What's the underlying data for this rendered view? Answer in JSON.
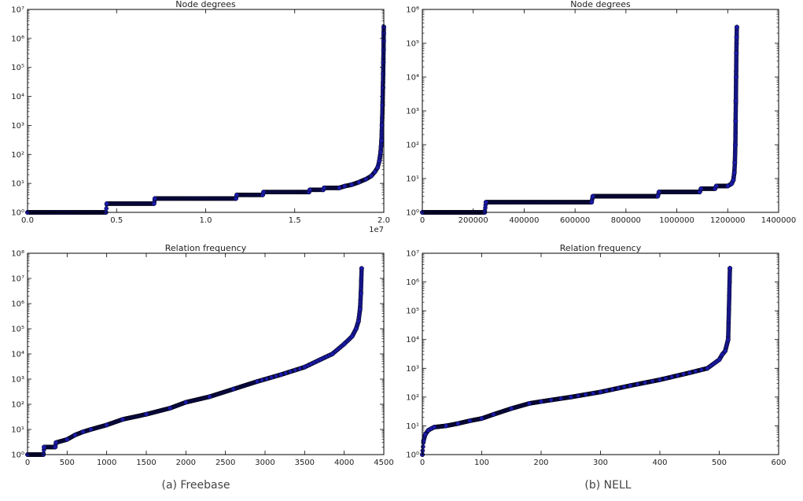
{
  "captions": {
    "left": "(a) Freebase",
    "right": "(b) NELL"
  },
  "colors": {
    "marker": "#1a1aa8",
    "marker_edge": "#000000",
    "line": "#0000ff",
    "axis": "#000000",
    "text": "#222222"
  },
  "chart_data": [
    {
      "id": "freebase-node-degrees",
      "type": "scatter",
      "title": "Node  degrees",
      "xlabel": "",
      "ylabel": "",
      "xlim": [
        0,
        20000000
      ],
      "x_ticks": [
        0,
        5000000,
        10000000,
        15000000,
        20000000
      ],
      "x_tick_labels": [
        "0.0",
        "0.5",
        "1.0",
        "1.5",
        "2.0"
      ],
      "x_offset_label": "1e7",
      "y_scale": "log",
      "ylim": [
        1,
        10000000
      ],
      "y_tick_labels": [
        "10⁰",
        "10¹",
        "10²",
        "10³",
        "10⁴",
        "10⁵",
        "10⁶",
        "10⁷"
      ],
      "grid": false,
      "x": [
        0,
        4400000,
        4450000,
        7100000,
        7150000,
        11700000,
        11750000,
        13200000,
        13250000,
        15800000,
        15850000,
        16600000,
        16650000,
        17500000,
        17800000,
        18200000,
        18600000,
        19000000,
        19300000,
        19500000,
        19650000,
        19750000,
        19820000,
        19870000,
        19900000,
        19930000,
        19950000,
        19965000,
        19975000,
        19985000,
        19990000,
        19995000,
        20000000
      ],
      "y": [
        1,
        1,
        2,
        2,
        3,
        3,
        4,
        4,
        5,
        5,
        6,
        6,
        7,
        7,
        8,
        9,
        11,
        14,
        18,
        25,
        35,
        60,
        120,
        300,
        1000,
        5000,
        20000,
        60000,
        150000,
        400000,
        800000,
        1500000,
        2500000
      ]
    },
    {
      "id": "nell-node-degrees",
      "type": "scatter",
      "title": "Node   degrees",
      "xlabel": "",
      "ylabel": "",
      "xlim": [
        0,
        1400000
      ],
      "x_ticks": [
        0,
        200000,
        400000,
        600000,
        800000,
        1000000,
        1200000,
        1400000
      ],
      "x_tick_labels": [
        "0",
        "200000",
        "400000",
        "600000",
        "800000",
        "1000000",
        "1200000",
        "1400000"
      ],
      "y_scale": "log",
      "ylim": [
        1,
        1000000
      ],
      "y_tick_labels": [
        "10⁰",
        "10¹",
        "10²",
        "10³",
        "10⁴",
        "10⁵",
        "10⁶"
      ],
      "grid": false,
      "x": [
        0,
        245000,
        250000,
        665000,
        670000,
        925000,
        930000,
        1090000,
        1095000,
        1150000,
        1155000,
        1200000,
        1215000,
        1222000,
        1226000,
        1228000,
        1230000,
        1231000,
        1232000,
        1233000,
        1234000,
        1235000,
        1236000
      ],
      "y": [
        1,
        1,
        2,
        2,
        3,
        3,
        4,
        4,
        5,
        5,
        6,
        6,
        7,
        9,
        15,
        30,
        100,
        500,
        2000,
        10000,
        50000,
        150000,
        300000
      ]
    },
    {
      "id": "freebase-relation-frequency",
      "type": "scatter",
      "title": "Relation frequency",
      "xlabel": "",
      "ylabel": "",
      "xlim": [
        0,
        4500
      ],
      "x_ticks": [
        0,
        500,
        1000,
        1500,
        2000,
        2500,
        3000,
        3500,
        4000,
        4500
      ],
      "x_tick_labels": [
        "0",
        "500",
        "1000",
        "1500",
        "2000",
        "2500",
        "3000",
        "3500",
        "4000",
        "4500"
      ],
      "y_scale": "log",
      "ylim": [
        1,
        100000000
      ],
      "y_tick_labels": [
        "10⁰",
        "10¹",
        "10²",
        "10³",
        "10⁴",
        "10⁵",
        "10⁶",
        "10⁷",
        "10⁸"
      ],
      "grid": false,
      "x": [
        0,
        200,
        210,
        350,
        360,
        500,
        600,
        700,
        800,
        1000,
        1200,
        1500,
        1800,
        2000,
        2300,
        2600,
        2900,
        3200,
        3500,
        3700,
        3850,
        4000,
        4100,
        4150,
        4180,
        4200,
        4210,
        4220
      ],
      "y": [
        1,
        1,
        2,
        2,
        3,
        4,
        6,
        8,
        10,
        15,
        25,
        40,
        70,
        120,
        200,
        400,
        800,
        1500,
        3000,
        6000,
        10000,
        25000,
        50000,
        100000,
        200000,
        600000,
        2500000,
        25000000
      ]
    },
    {
      "id": "nell-relation-frequency",
      "type": "scatter",
      "title": "Relation frequency",
      "xlabel": "",
      "ylabel": "",
      "xlim": [
        0,
        600
      ],
      "x_ticks": [
        0,
        100,
        200,
        300,
        400,
        500,
        600
      ],
      "x_tick_labels": [
        "0",
        "100",
        "200",
        "300",
        "400",
        "500",
        "600"
      ],
      "y_scale": "log",
      "ylim": [
        1,
        10000000
      ],
      "y_tick_labels": [
        "10⁰",
        "10¹",
        "10²",
        "10³",
        "10⁴",
        "10⁵",
        "10⁶",
        "10⁷"
      ],
      "grid": false,
      "x": [
        0,
        2,
        5,
        10,
        15,
        20,
        40,
        60,
        80,
        100,
        120,
        150,
        180,
        200,
        250,
        300,
        350,
        400,
        450,
        480,
        500,
        505,
        510,
        515,
        518
      ],
      "y": [
        1,
        3,
        5,
        7,
        8,
        9,
        10,
        12,
        15,
        18,
        25,
        40,
        60,
        70,
        100,
        150,
        250,
        400,
        700,
        1000,
        2000,
        3000,
        4000,
        10000,
        3000000
      ]
    }
  ]
}
